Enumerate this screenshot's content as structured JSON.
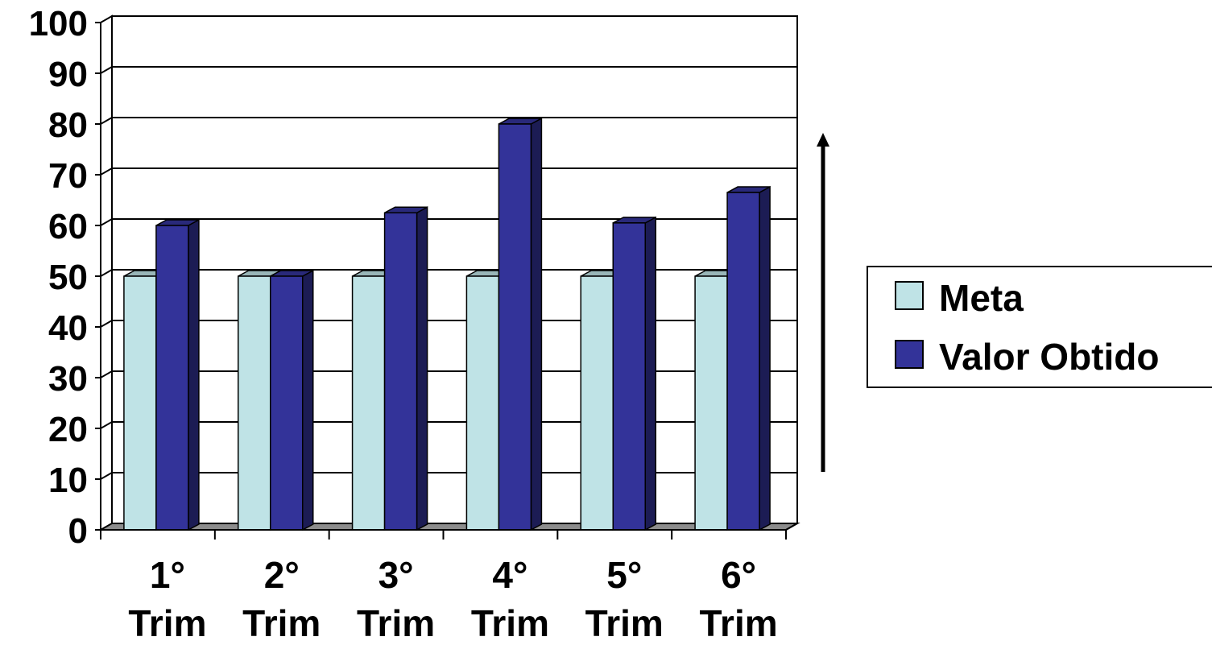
{
  "chart_data": {
    "type": "bar",
    "three_d": true,
    "categories": [
      [
        "1°",
        "Trim"
      ],
      [
        "2°",
        "Trim"
      ],
      [
        "3°",
        "Trim"
      ],
      [
        "4°",
        "Trim"
      ],
      [
        "5°",
        "Trim"
      ],
      [
        "6°",
        "Trim"
      ]
    ],
    "series": [
      {
        "name": "Meta",
        "values": [
          50,
          50,
          50,
          50,
          50,
          50
        ],
        "color": "#BFE3E6"
      },
      {
        "name": "Valor Obtido",
        "values": [
          60,
          50,
          62.5,
          80,
          60.5,
          66.5
        ],
        "color": "#333399"
      }
    ],
    "title": "",
    "xlabel": "",
    "ylabel": "",
    "ylim": [
      0,
      100
    ],
    "yticks": [
      0,
      10,
      20,
      30,
      40,
      50,
      60,
      70,
      80,
      90,
      100
    ],
    "grid": true,
    "legend": "right",
    "arrow": "up"
  }
}
